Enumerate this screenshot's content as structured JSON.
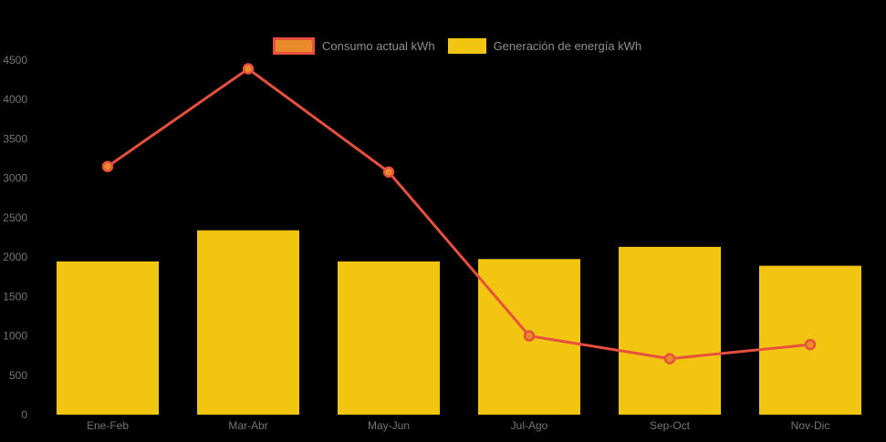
{
  "chart": {
    "background": "#000000",
    "axis_label_color": "#757575",
    "legend_text_color": "#8F8F8F"
  },
  "chart_data": {
    "type": "combo",
    "title": "",
    "xlabel": "",
    "ylabel": "",
    "categories": [
      "Ene-Feb",
      "Mar-Abr",
      "May-Jun",
      "Jul-Ago",
      "Sep-Oct",
      "Nov-Dic"
    ],
    "series": [
      {
        "name": "Consumo actual kWh",
        "type": "line",
        "values": [
          3150,
          4390,
          3080,
          1000,
          710,
          890
        ],
        "line_color": "#E6503C",
        "point_fill": "#E98A2B"
      },
      {
        "name": "Generación de energía kWh",
        "type": "bar",
        "values": [
          1945,
          2340,
          1945,
          1975,
          2130,
          1890
        ],
        "color": "#F2C511"
      }
    ],
    "ylim": [
      0,
      4500
    ],
    "ytick_step": 500,
    "grid": false,
    "legend_position": "top"
  }
}
